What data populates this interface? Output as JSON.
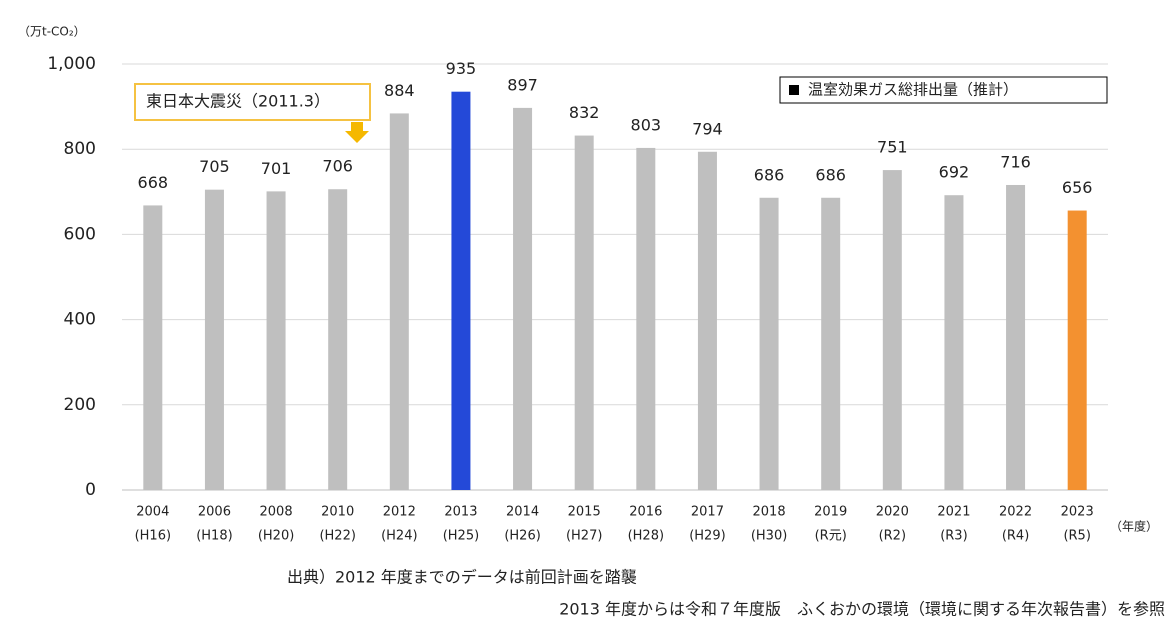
{
  "chart_data": {
    "type": "bar",
    "y_axis_label": "（万t-CO₂）",
    "x_axis_label": "（年度）",
    "categories": [
      "2004",
      "2006",
      "2008",
      "2010",
      "2012",
      "2013",
      "2014",
      "2015",
      "2016",
      "2017",
      "2018",
      "2019",
      "2020",
      "2021",
      "2022",
      "2023"
    ],
    "category_sublabels": [
      "(H16)",
      "(H18)",
      "(H20)",
      "(H22)",
      "(H24)",
      "(H25)",
      "(H26)",
      "(H27)",
      "(H28)",
      "(H29)",
      "(H30)",
      "(R元)",
      "(R2)",
      "(R3)",
      "(R4)",
      "(R5)"
    ],
    "series": [
      {
        "name": "温室効果ガス総排出量（推計）",
        "color": "#bfbfbf",
        "values": [
          668,
          705,
          701,
          706,
          884,
          935,
          897,
          832,
          803,
          794,
          686,
          686,
          751,
          692,
          716,
          656
        ],
        "colors": [
          "#bfbfbf",
          "#bfbfbf",
          "#bfbfbf",
          "#bfbfbf",
          "#bfbfbf",
          "#2449d8",
          "#bfbfbf",
          "#bfbfbf",
          "#bfbfbf",
          "#bfbfbf",
          "#bfbfbf",
          "#bfbfbf",
          "#bfbfbf",
          "#bfbfbf",
          "#bfbfbf",
          "#f39130"
        ]
      }
    ],
    "ylim": [
      0,
      1000
    ],
    "yticks": [
      0,
      200,
      400,
      600,
      800,
      {
        "value": 1000,
        "label": "1,000"
      }
    ],
    "grid": true,
    "legend_position": "top-right",
    "annotation": "東日本大震災（2011.3）",
    "notes": [
      "出典）2012 年度までのデータは前回計画を踏襲",
      "2013 年度からは令和７年度版　ふくおかの環境（環境に関する年次報告書）を参照"
    ]
  }
}
